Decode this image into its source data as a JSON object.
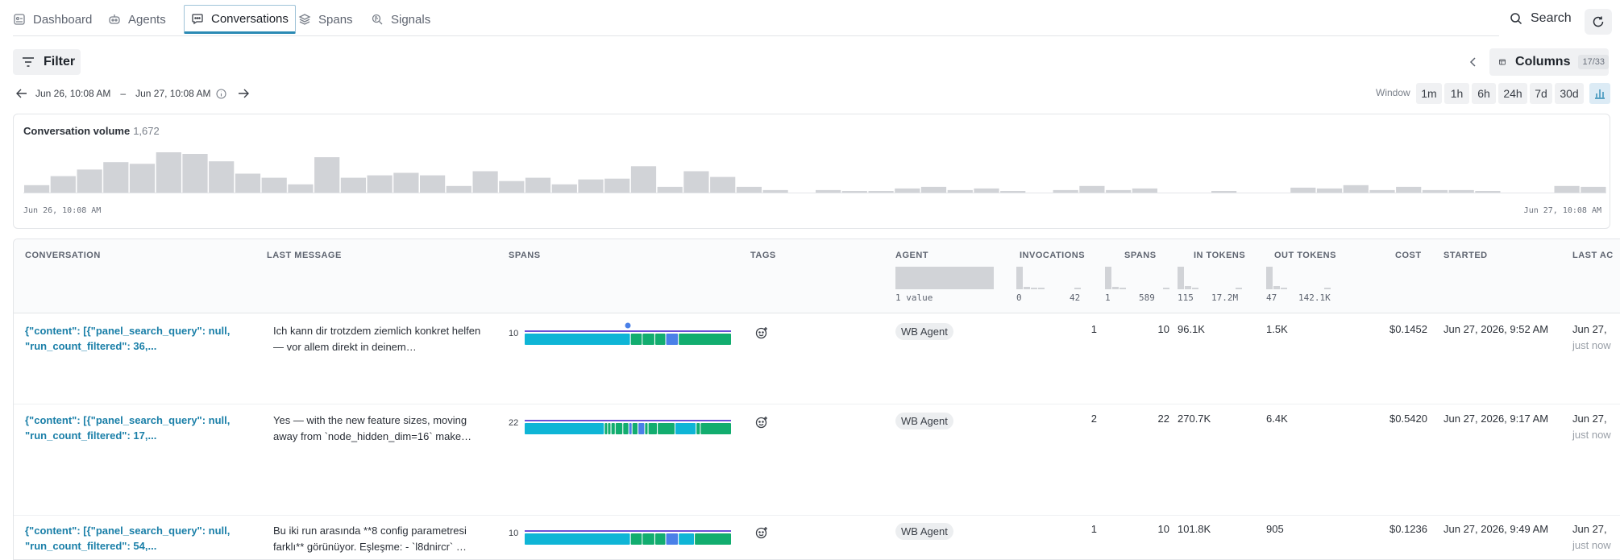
{
  "nav": {
    "tabs": [
      {
        "label": "Dashboard",
        "icon": "dashboard-icon"
      },
      {
        "label": "Agents",
        "icon": "agent-icon"
      },
      {
        "label": "Conversations",
        "icon": "chat-icon"
      },
      {
        "label": "Spans",
        "icon": "layers-icon"
      },
      {
        "label": "Signals",
        "icon": "signals-icon"
      }
    ],
    "active_tab": "Conversations",
    "search_label": "Search"
  },
  "toolbar": {
    "filter_label": "Filter",
    "columns_label": "Columns",
    "columns_count": "17/33"
  },
  "range": {
    "start": "Jun 26, 10:08 AM",
    "separator": "–",
    "end": "Jun 27, 10:08 AM"
  },
  "window": {
    "label": "Window",
    "options": [
      "1m",
      "1h",
      "6h",
      "24h",
      "7d",
      "30d"
    ]
  },
  "volume": {
    "title": "Conversation volume",
    "count": "1,672",
    "start_label": "Jun 26, 10:08 AM",
    "end_label": "Jun 27, 10:08 AM",
    "bars": [
      9,
      20,
      28,
      37,
      35,
      49,
      47,
      38,
      23,
      18,
      10,
      43,
      18,
      21,
      24,
      21,
      8,
      26,
      14,
      18,
      10,
      16,
      17,
      32,
      7,
      26,
      19,
      7,
      3,
      0,
      3,
      2,
      2,
      5,
      7,
      3,
      5,
      2,
      0,
      3,
      8,
      3,
      5,
      0,
      0,
      2,
      0,
      0,
      6,
      5,
      9,
      3,
      7,
      3,
      3,
      2,
      0,
      0,
      8,
      7
    ]
  },
  "table": {
    "headers": {
      "conversation": "CONVERSATION",
      "last_message": "LAST MESSAGE",
      "spans_chart": "SPANS",
      "tags": "TAGS",
      "agent": "AGENT",
      "invocations": "INVOCATIONS",
      "spans": "SPANS",
      "in_tokens": "IN TOKENS",
      "out_tokens": "OUT TOKENS",
      "cost": "COST",
      "started": "STARTED",
      "last_active": "LAST AC"
    },
    "summaries": {
      "agent": "1 value",
      "invocations": {
        "min": "0",
        "max": "42"
      },
      "spans": {
        "min": "1",
        "max": "589"
      },
      "in_tokens": {
        "min": "115",
        "max": "17.2M"
      },
      "out_tokens": {
        "min": "47",
        "max": "142.1K"
      }
    },
    "rows": [
      {
        "conversation": "{\"content\": [{\"panel_search_query\": null, \"run_count_filtered\": 36,...",
        "last_message": "Ich kann dir trotzdem ziemlich konkret helfen — vor allem direkt in deinem…",
        "span_count": "10",
        "agent": "WB Agent",
        "invocations": "1",
        "spans": "10",
        "in_tokens": "96.1K",
        "out_tokens": "1.5K",
        "cost": "$0.1452",
        "started": "Jun 27, 2026, 9:52 AM",
        "last_active": "Jun 27,",
        "last_active_sub": "just now"
      },
      {
        "conversation": "{\"content\": [{\"panel_search_query\": null, \"run_count_filtered\": 17,...",
        "last_message": "Yes — with the new feature sizes, moving away from `node_hidden_dim=16` make…",
        "span_count": "22",
        "agent": "WB Agent",
        "invocations": "2",
        "spans": "22",
        "in_tokens": "270.7K",
        "out_tokens": "6.4K",
        "cost": "$0.5420",
        "started": "Jun 27, 2026, 9:17 AM",
        "last_active": "Jun 27,",
        "last_active_sub": "just now"
      },
      {
        "conversation": "{\"content\": [{\"panel_search_query\": null, \"run_count_filtered\": 54,...",
        "last_message": "Bu iki run arasında **8 config parametresi farklı** görünüyor. Eşleşme: - `l8dnircr` …",
        "span_count": "10",
        "agent": "WB Agent",
        "invocations": "1",
        "spans": "10",
        "in_tokens": "101.8K",
        "out_tokens": "905",
        "cost": "$0.1236",
        "started": "Jun 27, 2026, 9:49 AM",
        "last_active": "Jun 27,",
        "last_active_sub": "just now"
      }
    ]
  },
  "colors": {
    "accent": "#1a7fa8",
    "span_llm": "#0fb5d6",
    "span_tool": "#12ad6f",
    "span_agent": "#4a80e8",
    "span_line": "#6a4fd6"
  }
}
